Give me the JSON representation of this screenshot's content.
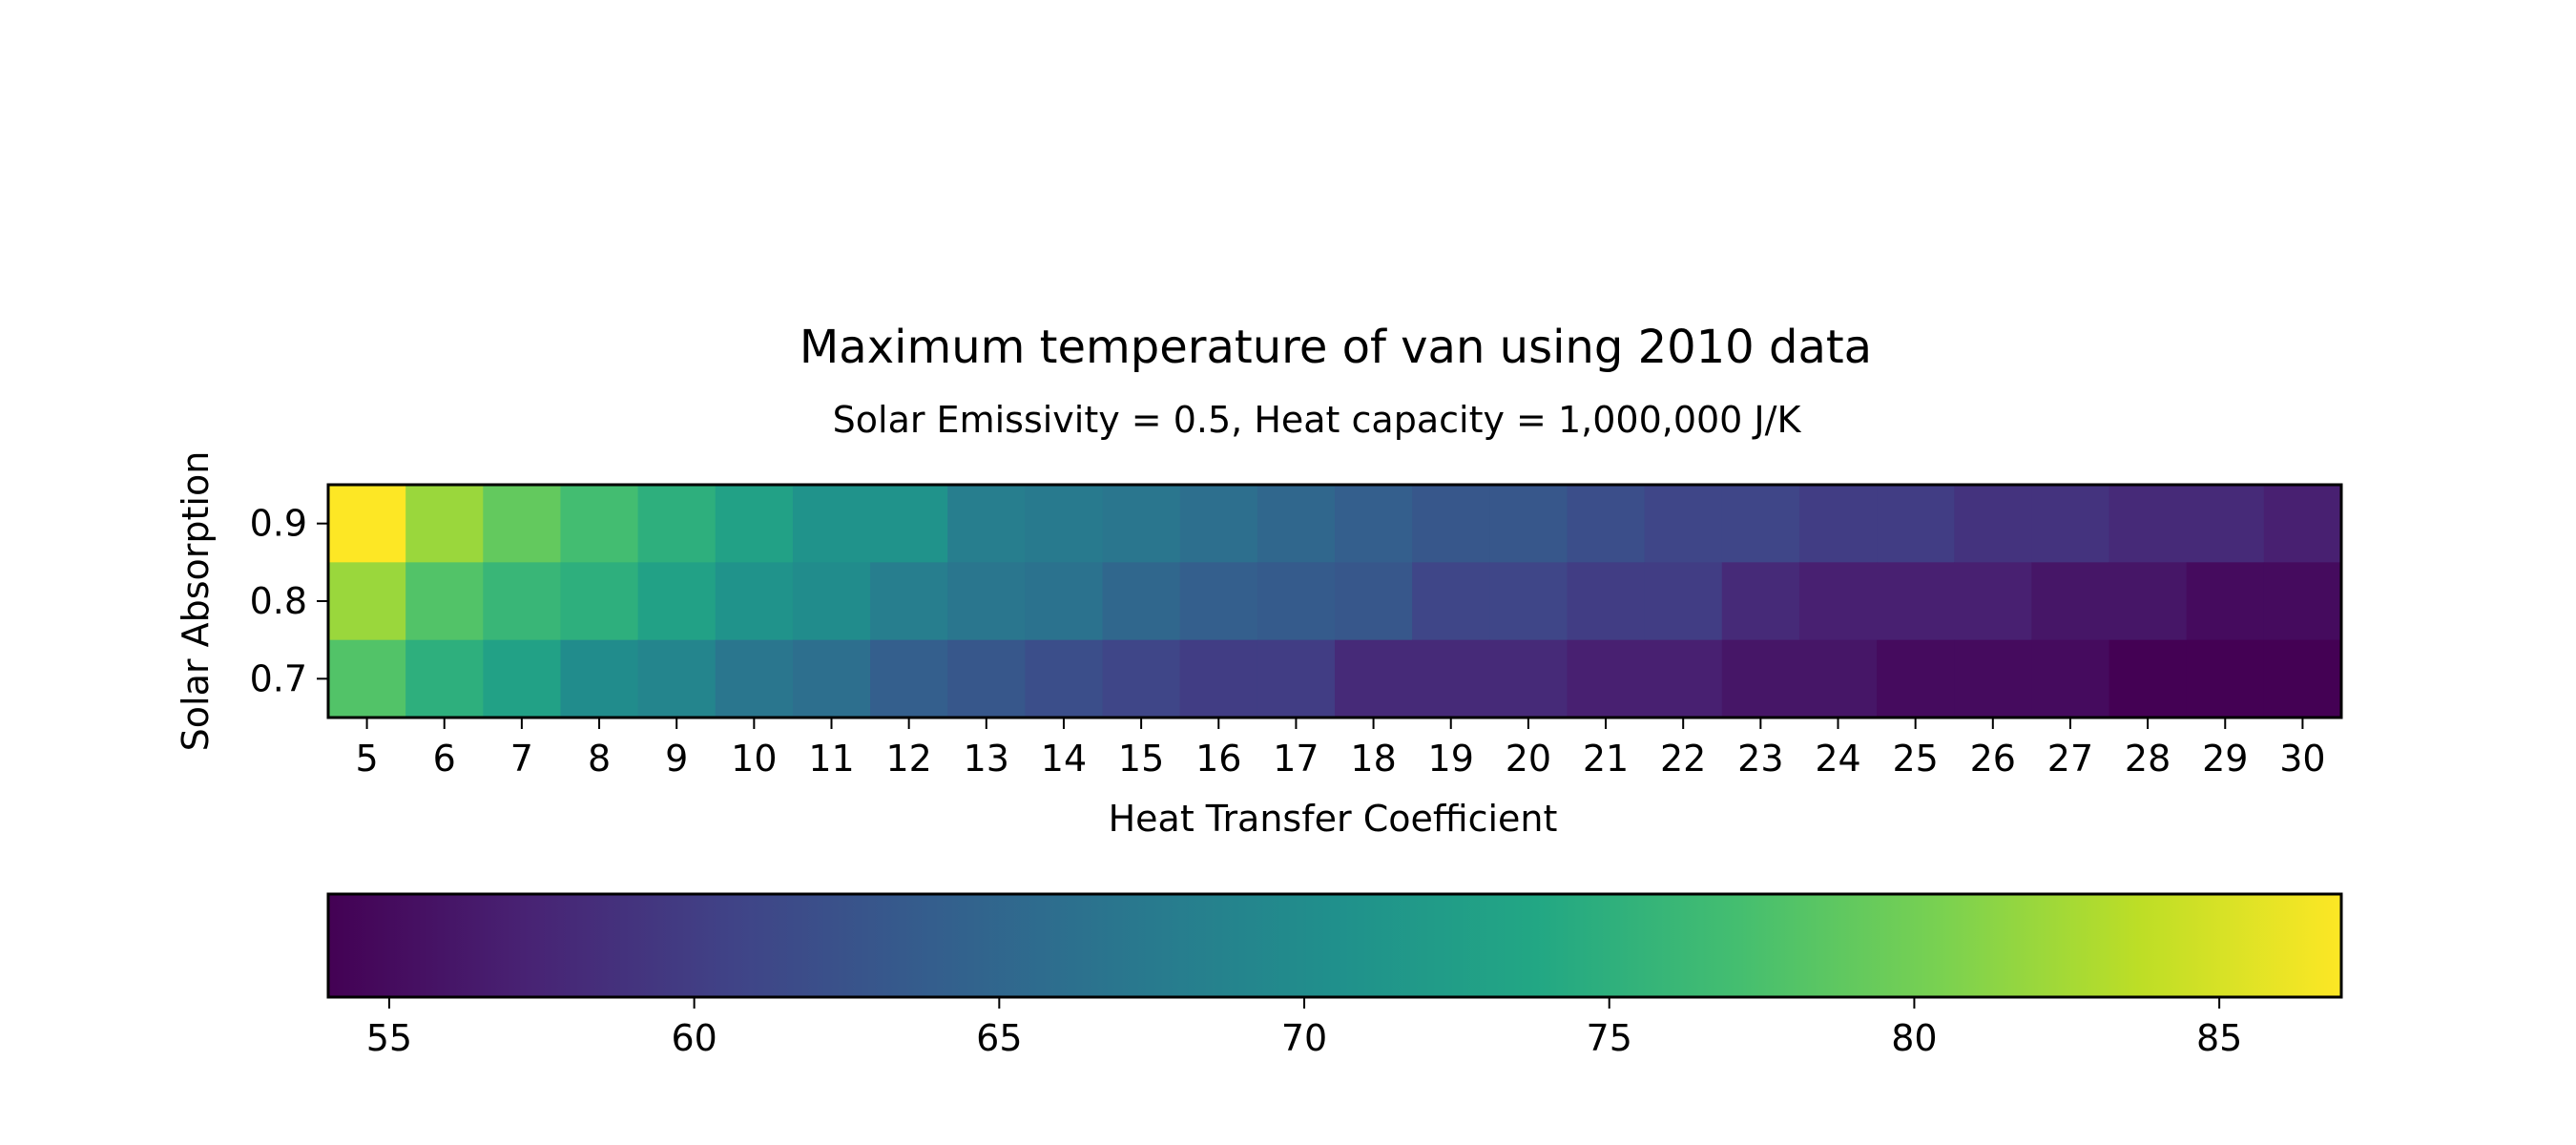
{
  "chart_data": {
    "type": "heatmap",
    "title": "Maximum temperature of van using 2010 data",
    "subtitle": "Solar Emissivity = 0.5, Heat capacity = 1,000,000 J/K",
    "xlabel": "Heat Transfer Coefficient",
    "ylabel": "Solar Absorption",
    "x": [
      5,
      6,
      7,
      8,
      9,
      10,
      11,
      12,
      13,
      14,
      15,
      16,
      17,
      18,
      19,
      20,
      21,
      22,
      23,
      24,
      25,
      26,
      27,
      28,
      29,
      30
    ],
    "y": [
      0.9,
      0.8,
      0.7
    ],
    "x_tick_labels": [
      "5",
      "6",
      "7",
      "8",
      "9",
      "10",
      "11",
      "12",
      "13",
      "14",
      "15",
      "16",
      "17",
      "18",
      "19",
      "20",
      "21",
      "22",
      "23",
      "24",
      "25",
      "26",
      "27",
      "28",
      "29",
      "30"
    ],
    "y_tick_labels": [
      "0.9",
      "0.8",
      "0.7"
    ],
    "values": [
      [
        87,
        82,
        79,
        77,
        75,
        73,
        71,
        71,
        68,
        67.5,
        67,
        66,
        65,
        64,
        63,
        63,
        62,
        61,
        61,
        60,
        60,
        59,
        59,
        58,
        58,
        57
      ],
      [
        82,
        78,
        76,
        75,
        73,
        71,
        70,
        68,
        67,
        66.5,
        65,
        64,
        63.5,
        63,
        61,
        61,
        60,
        60,
        58,
        57,
        57,
        57,
        56,
        56,
        55,
        55
      ],
      [
        78,
        75,
        73,
        70,
        69,
        67,
        66,
        64,
        63,
        62,
        61,
        60,
        60,
        58,
        58,
        58,
        57,
        57,
        56,
        56,
        55,
        55,
        55,
        54,
        54,
        54
      ]
    ],
    "colormap": "viridis",
    "colorbar": {
      "range": [
        54,
        87
      ],
      "ticks": [
        55,
        60,
        65,
        70,
        75,
        80,
        85
      ],
      "tick_labels": [
        "55",
        "60",
        "65",
        "70",
        "75",
        "80",
        "85"
      ],
      "orientation": "horizontal",
      "placement": "bottom"
    },
    "grid": false
  }
}
